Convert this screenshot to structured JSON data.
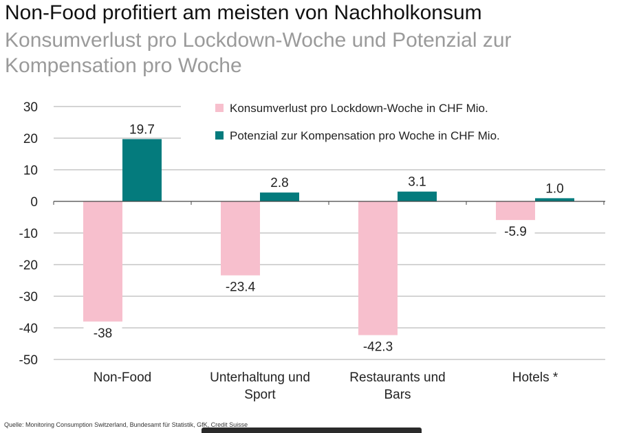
{
  "title": "Non-Food profitiert am meisten von Nachholkonsum",
  "subtitle": "Konsumverlust pro Lockdown-Woche und Potenzial zur Kompensation pro Woche",
  "source": "Quelle: Monitoring Consumption Switzerland, Bundesamt für Statistik, GfK, Credit Suisse",
  "chart_data": {
    "type": "bar",
    "categories": [
      [
        "Non-Food"
      ],
      [
        "Unterhaltung und",
        "Sport"
      ],
      [
        "Restaurants und",
        "Bars"
      ],
      [
        "Hotels *"
      ]
    ],
    "series": [
      {
        "name": "Konsumverlust pro Lockdown-Woche in CHF Mio.",
        "color": "#f7bfcd",
        "values": [
          -38,
          -23.4,
          -42.3,
          -5.9
        ],
        "labels": [
          "-38",
          "-23.4",
          "-42.3",
          "-5.9"
        ]
      },
      {
        "name": "Potenzial zur Kompensation pro Woche in CHF Mio.",
        "color": "#047b7d",
        "values": [
          19.7,
          2.8,
          3.1,
          1.0
        ],
        "labels": [
          "19.7",
          "2.8",
          "3.1",
          "1.0"
        ]
      }
    ],
    "ylim": [
      -50,
      30
    ],
    "yticks": [
      30,
      20,
      10,
      0,
      -10,
      -20,
      -30,
      -40,
      -50
    ],
    "grid": true,
    "legend": "top-right"
  }
}
